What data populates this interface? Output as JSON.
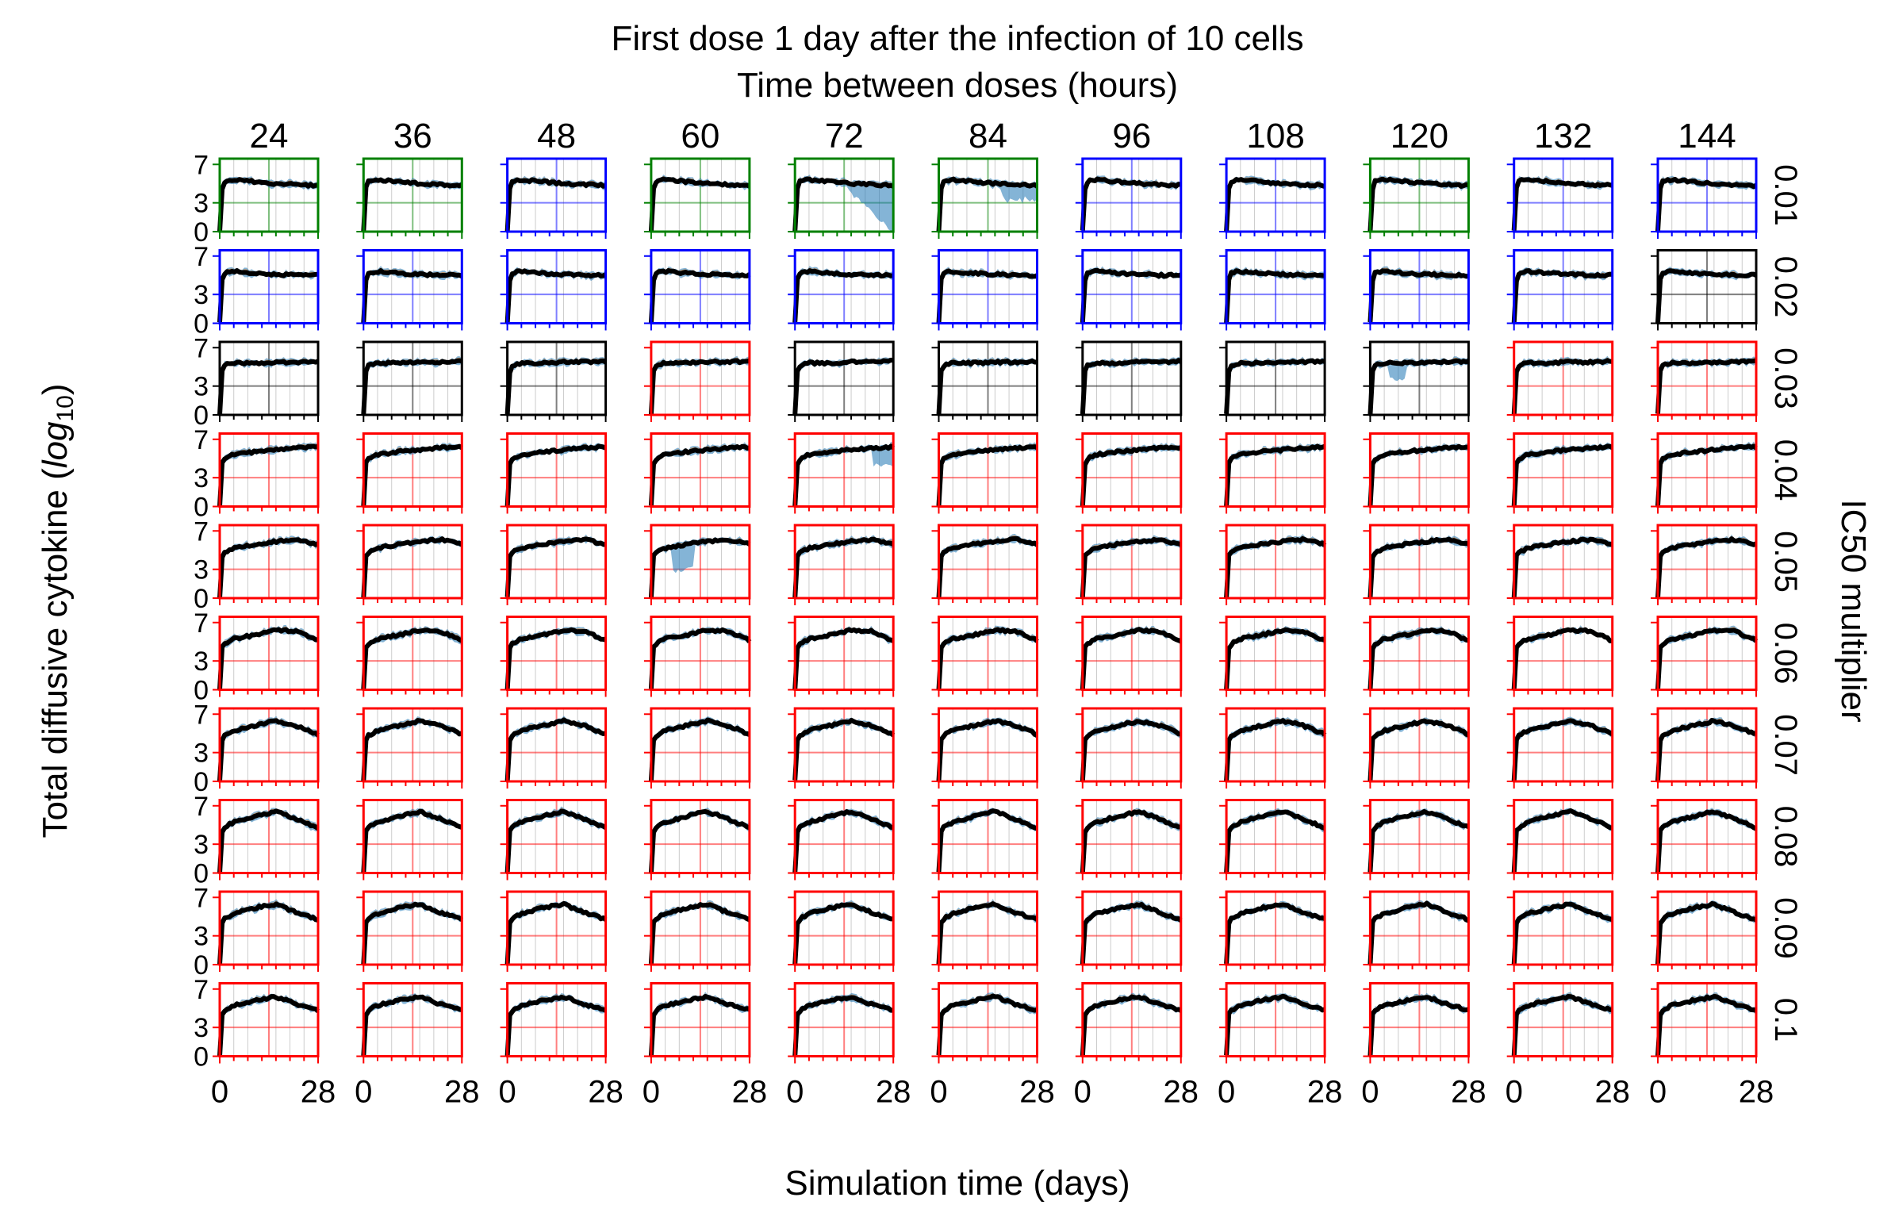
{
  "chart_data": {
    "type": "line",
    "title_line1": "First dose 1 day after the infection of 10 cells",
    "title_line2": "Time between doses (hours)",
    "xlabel": "Simulation time (days)",
    "ylabel_prefix": "Total diffusive cytokine (",
    "ylabel_log": "log",
    "ylabel_sub": "10",
    "ylabel_suffix": ")",
    "right_label": "IC50 multiplier",
    "column_labels": [
      "24",
      "36",
      "48",
      "60",
      "72",
      "84",
      "96",
      "108",
      "120",
      "132",
      "144"
    ],
    "row_labels": [
      "0.01",
      "0.02",
      "0.03",
      "0.04",
      "0.05",
      "0.06",
      "0.07",
      "0.08",
      "0.09",
      "0.1"
    ],
    "xlim": [
      0,
      28
    ],
    "ylim": [
      0,
      7.6
    ],
    "x_tick_labels": [
      "0",
      "28"
    ],
    "y_tick_labels": [
      "0",
      "3",
      "7"
    ],
    "y_ticks": [
      0,
      3,
      7
    ],
    "frame_colors": {
      "green": "#008000",
      "blue": "#0000ff",
      "black": "#000000",
      "red": "#ff0000"
    },
    "frame_color_grid": [
      [
        "green",
        "green",
        "blue",
        "green",
        "green",
        "green",
        "blue",
        "blue",
        "green",
        "blue",
        "blue"
      ],
      [
        "blue",
        "blue",
        "blue",
        "blue",
        "blue",
        "blue",
        "blue",
        "blue",
        "blue",
        "blue",
        "black"
      ],
      [
        "black",
        "black",
        "black",
        "red",
        "black",
        "black",
        "black",
        "black",
        "black",
        "red",
        "red"
      ],
      [
        "red",
        "red",
        "red",
        "red",
        "red",
        "red",
        "red",
        "red",
        "red",
        "red",
        "red"
      ],
      [
        "red",
        "red",
        "red",
        "red",
        "red",
        "red",
        "red",
        "red",
        "red",
        "red",
        "red"
      ],
      [
        "red",
        "red",
        "red",
        "red",
        "red",
        "red",
        "red",
        "red",
        "red",
        "red",
        "red"
      ],
      [
        "red",
        "red",
        "red",
        "red",
        "red",
        "red",
        "red",
        "red",
        "red",
        "red",
        "red"
      ],
      [
        "red",
        "red",
        "red",
        "red",
        "red",
        "red",
        "red",
        "red",
        "red",
        "red",
        "red"
      ],
      [
        "red",
        "red",
        "red",
        "red",
        "red",
        "red",
        "red",
        "red",
        "red",
        "red",
        "red"
      ],
      [
        "red",
        "red",
        "red",
        "red",
        "red",
        "red",
        "red",
        "red",
        "red",
        "red",
        "red"
      ]
    ],
    "mean_line_color": "#000000",
    "band_colors": {
      "blue": "#1f77b4",
      "orange": "#ff7f0e"
    },
    "row_profiles": [
      {
        "t": [
          0,
          0.6,
          1.5,
          4,
          10,
          16,
          22,
          28
        ],
        "y": [
          0,
          4.4,
          5.3,
          5.4,
          5.2,
          5.0,
          4.9,
          4.8
        ]
      },
      {
        "t": [
          0,
          0.6,
          1.5,
          4,
          10,
          16,
          22,
          28
        ],
        "y": [
          0,
          4.4,
          5.3,
          5.4,
          5.2,
          5.1,
          5.0,
          5.0
        ]
      },
      {
        "t": [
          0,
          0.6,
          1.5,
          4,
          10,
          16,
          22,
          28
        ],
        "y": [
          0,
          4.4,
          5.2,
          5.4,
          5.4,
          5.5,
          5.5,
          5.6
        ]
      },
      {
        "t": [
          0,
          0.6,
          1.5,
          4,
          10,
          16,
          22,
          28
        ],
        "y": [
          0,
          4.4,
          5.0,
          5.4,
          5.7,
          5.9,
          6.1,
          6.2
        ]
      },
      {
        "t": [
          0,
          0.6,
          1.5,
          4,
          10,
          16,
          22,
          28
        ],
        "y": [
          0,
          4.3,
          4.8,
          5.2,
          5.6,
          5.9,
          6.1,
          5.6
        ]
      },
      {
        "t": [
          0,
          0.6,
          1.5,
          4,
          10,
          16,
          22,
          28
        ],
        "y": [
          0,
          4.3,
          4.8,
          5.3,
          5.7,
          6.2,
          6.1,
          5.1
        ]
      },
      {
        "t": [
          0,
          0.6,
          1.5,
          4,
          10,
          16,
          22,
          28
        ],
        "y": [
          0,
          4.3,
          4.8,
          5.3,
          5.8,
          6.3,
          5.8,
          4.9
        ]
      },
      {
        "t": [
          0,
          0.6,
          1.5,
          4,
          10,
          16,
          22,
          28
        ],
        "y": [
          0,
          4.3,
          4.8,
          5.3,
          5.9,
          6.4,
          5.6,
          4.7
        ]
      },
      {
        "t": [
          0,
          0.6,
          1.5,
          4,
          10,
          16,
          22,
          28
        ],
        "y": [
          0,
          4.3,
          4.8,
          5.3,
          5.9,
          6.3,
          5.4,
          4.7
        ]
      },
      {
        "t": [
          0,
          0.6,
          1.5,
          4,
          10,
          16,
          22,
          28
        ],
        "y": [
          0,
          4.3,
          4.8,
          5.3,
          5.8,
          6.2,
          5.4,
          4.8
        ]
      }
    ],
    "band_notes": "Shaded blue/orange replicate bands around a black mean curve in every panel; notable dips at 72h/0.01, 84h/0.01, 120h/0.03, 60h/0.05, 72h/0.04"
  }
}
